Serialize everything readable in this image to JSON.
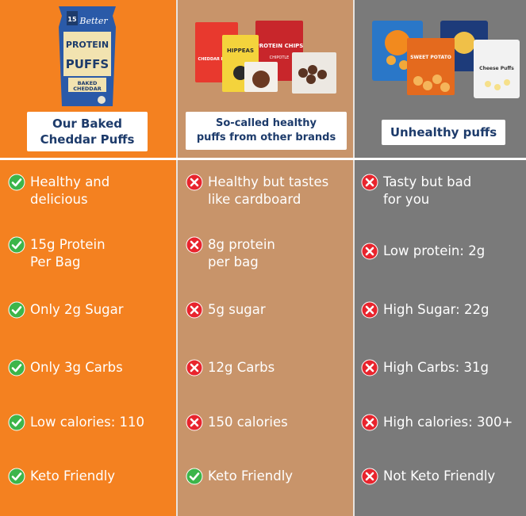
{
  "colors": {
    "orange": "#f48120",
    "tan": "#c8946a",
    "gray": "#7a7a7a",
    "navy": "#1d3b6b",
    "check_green": "#3cb54a",
    "cross_red": "#e8242d"
  },
  "columns": [
    {
      "label": "Our Baked\nCheddar Puffs",
      "bag_brand": "Better",
      "bag_lines": [
        "PROTEIN",
        "PUFFS"
      ],
      "bag_flavor": "BAKED\nCHEDDAR",
      "rows": [
        {
          "icon": "check-icon",
          "text": "Healthy and\ndelicious"
        },
        {
          "icon": "check-icon",
          "text": "15g Protein\nPer Bag"
        },
        {
          "icon": "check-icon",
          "text": "Only 2g Sugar"
        },
        {
          "icon": "check-icon",
          "text": "Only 3g Carbs"
        },
        {
          "icon": "check-icon",
          "text": "Low calories: 110"
        },
        {
          "icon": "check-icon",
          "text": "Keto Friendly"
        }
      ]
    },
    {
      "label": "So-called healthy\npuffs from other brands",
      "pack_texts": [
        "CHEDDAR BLAST",
        "HIPPEAS",
        "PROTEIN CHIPS",
        "CHIPOTLE"
      ],
      "rows": [
        {
          "icon": "cross-icon",
          "text": "Healthy but tastes\nlike cardboard"
        },
        {
          "icon": "cross-icon",
          "text": "8g protein\nper bag"
        },
        {
          "icon": "cross-icon",
          "text": "5g sugar"
        },
        {
          "icon": "cross-icon",
          "text": "12g Carbs"
        },
        {
          "icon": "cross-icon",
          "text": "150 calories"
        },
        {
          "icon": "check-icon",
          "text": "Keto Friendly"
        }
      ]
    },
    {
      "label": "Unhealthy puffs",
      "pack_texts": [
        "SWEET POTATO",
        "Cheese Puffs"
      ],
      "rows": [
        {
          "icon": "cross-icon",
          "text": "Tasty but bad\nfor you"
        },
        {
          "icon": "cross-icon",
          "text": "Low protein: 2g"
        },
        {
          "icon": "cross-icon",
          "text": "High Sugar: 22g"
        },
        {
          "icon": "cross-icon",
          "text": "High Carbs: 31g"
        },
        {
          "icon": "cross-icon",
          "text": "High calories: 300+"
        },
        {
          "icon": "cross-icon",
          "text": "Not Keto Friendly"
        }
      ]
    }
  ]
}
